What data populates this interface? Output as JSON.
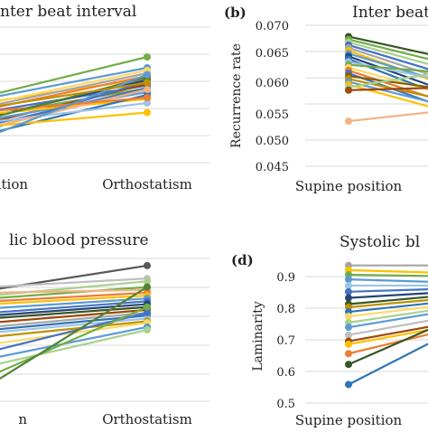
{
  "panel_labels": [
    "(b)",
    "(d)"
  ],
  "chart_data": [
    {
      "type": "line",
      "title": "nter beat interval",
      "xlabel": "",
      "ylabel": "",
      "categories": [
        "osition",
        "Orthostatism"
      ],
      "grid": true,
      "series": [
        {
          "values": [
            0.35,
            0.55
          ],
          "color": "#70ad47"
        },
        {
          "values": [
            0.38,
            0.57
          ],
          "color": "#4472c4"
        },
        {
          "values": [
            0.45,
            0.62
          ],
          "color": "#ffc000"
        },
        {
          "values": [
            0.5,
            0.78
          ],
          "color": "#70ad47"
        },
        {
          "values": [
            0.48,
            0.7
          ],
          "color": "#5b9bd5"
        },
        {
          "values": [
            0.42,
            0.66
          ],
          "color": "#a5a5a5"
        },
        {
          "values": [
            0.4,
            0.64
          ],
          "color": "#ed7d31"
        },
        {
          "values": [
            0.34,
            0.61
          ],
          "color": "#264478"
        },
        {
          "values": [
            0.3,
            0.58
          ],
          "color": "#9e480e"
        },
        {
          "values": [
            0.28,
            0.55
          ],
          "color": "#4472c4"
        },
        {
          "values": [
            0.32,
            0.52
          ],
          "color": "#5b9bd5"
        },
        {
          "values": [
            0.36,
            0.47
          ],
          "color": "#ffc000"
        },
        {
          "values": [
            0.44,
            0.68
          ],
          "color": "#ffd966"
        },
        {
          "values": [
            0.25,
            0.6
          ],
          "color": "#4472c4"
        },
        {
          "values": [
            0.22,
            0.5
          ],
          "color": "#2e75b6"
        },
        {
          "values": [
            0.3,
            0.44
          ],
          "color": "#9dc3e6"
        },
        {
          "values": [
            0.26,
            0.54
          ],
          "color": "#f4b183"
        },
        {
          "values": [
            0.38,
            0.48
          ],
          "color": "#ed7d31"
        },
        {
          "values": [
            0.33,
            0.63
          ],
          "color": "#548235"
        },
        {
          "values": [
            0.27,
            0.37
          ],
          "color": "#ffc000"
        },
        {
          "values": [
            0.2,
            0.65
          ],
          "color": "#5b9bd5"
        },
        {
          "values": [
            0.41,
            0.59
          ],
          "color": "#bf9000"
        }
      ]
    },
    {
      "type": "line",
      "title": "Inter beat",
      "xlabel": "",
      "ylabel": "Recurrence rate",
      "categories": [
        "Supine position",
        ""
      ],
      "yticks": [
        "0.045",
        "0.050",
        "0.055",
        "0.060",
        "0.065",
        "0.070"
      ],
      "ylim": [
        0.045,
        0.07
      ],
      "grid": true,
      "series": [
        {
          "values": [
            0.068,
            0.064
          ],
          "color": "#375623"
        },
        {
          "values": [
            0.0675,
            0.063
          ],
          "color": "#70ad47"
        },
        {
          "values": [
            0.067,
            0.062
          ],
          "color": "#a9d18e"
        },
        {
          "values": [
            0.0665,
            0.061
          ],
          "color": "#4472c4"
        },
        {
          "values": [
            0.066,
            0.06
          ],
          "color": "#a5a5a5"
        },
        {
          "values": [
            0.0655,
            0.059
          ],
          "color": "#ffc000"
        },
        {
          "values": [
            0.065,
            0.0595
          ],
          "color": "#5b9bd5"
        },
        {
          "values": [
            0.0645,
            0.058
          ],
          "color": "#264478"
        },
        {
          "values": [
            0.064,
            0.057
          ],
          "color": "#2e75b6"
        },
        {
          "values": [
            0.0635,
            0.06
          ],
          "color": "#9dc3e6"
        },
        {
          "values": [
            0.063,
            0.0615
          ],
          "color": "#70ad47"
        },
        {
          "values": [
            0.0625,
            0.0575
          ],
          "color": "#ffd966"
        },
        {
          "values": [
            0.062,
            0.056
          ],
          "color": "#ed7d31"
        },
        {
          "values": [
            0.0615,
            0.055
          ],
          "color": "#4472c4"
        },
        {
          "values": [
            0.061,
            0.0585
          ],
          "color": "#7f6000"
        },
        {
          "values": [
            0.0605,
            0.0565
          ],
          "color": "#bf9000"
        },
        {
          "values": [
            0.06,
            0.0555
          ],
          "color": "#5b9bd5"
        },
        {
          "values": [
            0.0595,
            0.0545
          ],
          "color": "#ffc000"
        },
        {
          "values": [
            0.059,
            0.062
          ],
          "color": "#a9d18e"
        },
        {
          "values": [
            0.0585,
            0.059
          ],
          "color": "#9e480e"
        },
        {
          "values": [
            0.053,
            0.055
          ],
          "color": "#f4b183"
        }
      ]
    },
    {
      "type": "line",
      "title": "lic blood pressure",
      "xlabel": "",
      "ylabel": "",
      "categories": [
        "n",
        "Orthostatism"
      ],
      "grid": true,
      "series": [
        {
          "values": [
            0.78,
            0.95
          ],
          "color": "#595959"
        },
        {
          "values": [
            0.8,
            0.86
          ],
          "color": "#bfbfbf"
        },
        {
          "values": [
            0.74,
            0.84
          ],
          "color": "#a9d18e"
        },
        {
          "values": [
            0.72,
            0.8
          ],
          "color": "#70ad47"
        },
        {
          "values": [
            0.76,
            0.78
          ],
          "color": "#f4b183"
        },
        {
          "values": [
            0.7,
            0.76
          ],
          "color": "#ed7d31"
        },
        {
          "values": [
            0.68,
            0.74
          ],
          "color": "#ffc000"
        },
        {
          "values": [
            0.65,
            0.72
          ],
          "color": "#5b9bd5"
        },
        {
          "values": [
            0.62,
            0.7
          ],
          "color": "#4472c4"
        },
        {
          "values": [
            0.6,
            0.68
          ],
          "color": "#264478"
        },
        {
          "values": [
            0.58,
            0.66
          ],
          "color": "#375623"
        },
        {
          "values": [
            0.55,
            0.64
          ],
          "color": "#9e480e"
        },
        {
          "values": [
            0.52,
            0.62
          ],
          "color": "#a5a5a5"
        },
        {
          "values": [
            0.5,
            0.6
          ],
          "color": "#2e75b6"
        },
        {
          "values": [
            0.48,
            0.58
          ],
          "color": "#9dc3e6"
        },
        {
          "values": [
            0.45,
            0.56
          ],
          "color": "#bf9000"
        },
        {
          "values": [
            0.4,
            0.55
          ],
          "color": "#ffd966"
        },
        {
          "values": [
            0.35,
            0.62
          ],
          "color": "#4472c4"
        },
        {
          "values": [
            0.3,
            0.52
          ],
          "color": "#5b9bd5"
        },
        {
          "values": [
            0.25,
            0.5
          ],
          "color": "#a9d18e"
        },
        {
          "values": [
            0.18,
            0.66
          ],
          "color": "#70ad47"
        },
        {
          "values": [
            0.12,
            0.8
          ],
          "color": "#548235"
        }
      ]
    },
    {
      "type": "line",
      "title": "Systolic bl",
      "xlabel": "",
      "ylabel": "Laminarity",
      "categories": [
        "Supine position",
        ""
      ],
      "yticks": [
        "0.5",
        "0.6",
        "0.7",
        "0.8",
        "0.9"
      ],
      "ylim": [
        0.5,
        0.95
      ],
      "grid": true,
      "series": [
        {
          "values": [
            0.945,
            0.945
          ],
          "color": "#a5a5a5"
        },
        {
          "values": [
            0.93,
            0.92
          ],
          "color": "#ffc000"
        },
        {
          "values": [
            0.915,
            0.91
          ],
          "color": "#70ad47"
        },
        {
          "values": [
            0.9,
            0.89
          ],
          "color": "#5b9bd5"
        },
        {
          "values": [
            0.88,
            0.88
          ],
          "color": "#9dc3e6"
        },
        {
          "values": [
            0.86,
            0.87
          ],
          "color": "#4472c4"
        },
        {
          "values": [
            0.84,
            0.86
          ],
          "color": "#264478"
        },
        {
          "values": [
            0.82,
            0.85
          ],
          "color": "#375623"
        },
        {
          "values": [
            0.81,
            0.84
          ],
          "color": "#bf9000"
        },
        {
          "values": [
            0.795,
            0.83
          ],
          "color": "#2e75b6"
        },
        {
          "values": [
            0.78,
            0.82
          ],
          "color": "#ffd966"
        },
        {
          "values": [
            0.76,
            0.81
          ],
          "color": "#a9d18e"
        },
        {
          "values": [
            0.745,
            0.8
          ],
          "color": "#5b9bd5"
        },
        {
          "values": [
            0.72,
            0.78
          ],
          "color": "#bfbfbf"
        },
        {
          "values": [
            0.7,
            0.76
          ],
          "color": "#9e480e"
        },
        {
          "values": [
            0.69,
            0.75
          ],
          "color": "#ffc000"
        },
        {
          "values": [
            0.66,
            0.74
          ],
          "color": "#ed7d31"
        },
        {
          "values": [
            0.625,
            0.77
          ],
          "color": "#375623"
        },
        {
          "values": [
            0.56,
            0.73
          ],
          "color": "#2e75b6"
        }
      ]
    }
  ]
}
